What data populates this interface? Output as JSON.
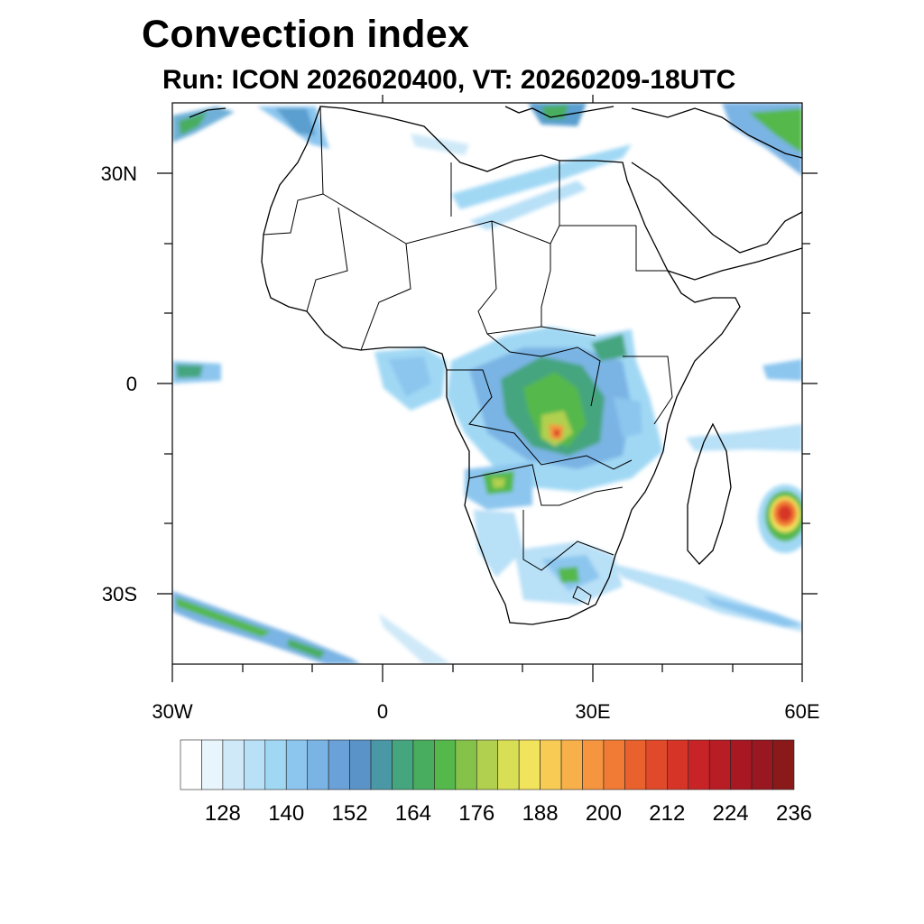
{
  "title": "Convection index",
  "subtitle": "Run: ICON 2026020400,  VT: 20260209-18UTC",
  "map": {
    "lon_range": [
      -30,
      60
    ],
    "lat_range": [
      -40,
      40
    ],
    "y_tick_labels": [
      "30N",
      "0",
      "30S"
    ],
    "x_tick_labels": [
      "30W",
      "0",
      "30E",
      "60E"
    ]
  },
  "colorbar": {
    "labels": [
      "128",
      "140",
      "152",
      "164",
      "176",
      "188",
      "200",
      "212",
      "224",
      "236"
    ],
    "colors": [
      "#ffffff",
      "#e8f5fc",
      "#cfe9f8",
      "#b8e0f7",
      "#a0d8f4",
      "#8cc6ef",
      "#7ab4e4",
      "#6aa1d8",
      "#5993c8",
      "#4a98a6",
      "#45a57f",
      "#48ad5e",
      "#55b84b",
      "#85c24a",
      "#b1d04f",
      "#d9df55",
      "#f2e35c",
      "#f8cb55",
      "#f7b04a",
      "#f5953f",
      "#f17a35",
      "#e9612d",
      "#e04a2a",
      "#d73428",
      "#c82427",
      "#b81c24",
      "#a71822",
      "#981720",
      "#8a1a1a"
    ]
  }
}
